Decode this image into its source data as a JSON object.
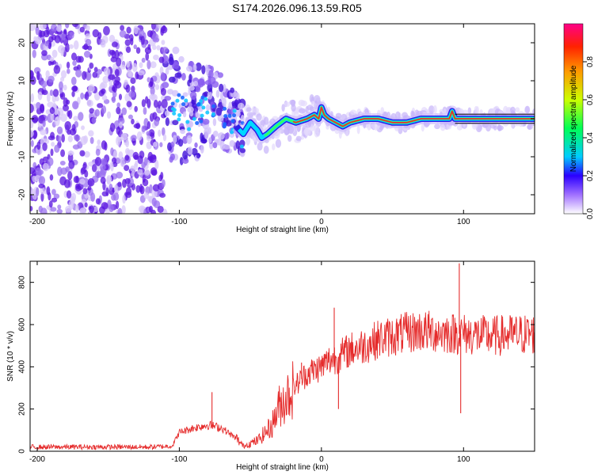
{
  "title": "S174.2026.096.13.59.R05",
  "colors": {
    "snr_line": "#e52b2b",
    "ridge": "#e53030",
    "frame": "#000000"
  },
  "chart_data": [
    {
      "id": "spectrogram",
      "type": "heatmap",
      "title": "S174.2026.096.13.59.R05",
      "xlabel": "Height of straight line (km)",
      "ylabel": "Frequency (Hz)",
      "xlim": [
        -205,
        150
      ],
      "ylim": [
        -25,
        25
      ],
      "xticks": [
        -200,
        -100,
        0,
        100
      ],
      "yticks": [
        -20,
        -10,
        0,
        10,
        20
      ],
      "colorbar": {
        "label": "Normalized spectral amplitude",
        "range": [
          0,
          1
        ],
        "ticks": [
          "0.0",
          "0.2",
          "0.4",
          "0.6",
          "0.8"
        ]
      },
      "ridge": {
        "x": [
          -105,
          -95,
          -85,
          -75,
          -65,
          -55,
          -50,
          -45,
          -42,
          -38,
          -32,
          -25,
          -18,
          -10,
          -5,
          -2,
          0,
          2,
          5,
          10,
          15,
          20,
          30,
          40,
          50,
          60,
          70,
          80,
          90,
          92,
          94,
          100,
          150
        ],
        "y": [
          4,
          1,
          2,
          3,
          0,
          -4,
          -1,
          -3,
          -5,
          -4,
          -2,
          0,
          -1,
          0,
          1,
          0,
          3,
          1,
          0,
          -1,
          -2,
          -1,
          0,
          0,
          -1,
          -1,
          0,
          0,
          0,
          2,
          0,
          0,
          0
        ]
      }
    },
    {
      "id": "snr",
      "type": "line",
      "xlabel": "Height of straight line (km)",
      "ylabel": "SNR (10 * v/v)",
      "xlim": [
        -205,
        150
      ],
      "ylim": [
        0,
        900
      ],
      "xticks": [
        -200,
        -100,
        0,
        100
      ],
      "yticks": [
        0,
        200,
        400,
        600,
        800
      ],
      "envelope": {
        "x": [
          -205,
          -180,
          -150,
          -120,
          -105,
          -100,
          -90,
          -80,
          -70,
          -60,
          -55,
          -45,
          -35,
          -30,
          -20,
          -10,
          0,
          5,
          10,
          15,
          20,
          30,
          40,
          50,
          60,
          70,
          80,
          90,
          100,
          110,
          120,
          130,
          150
        ],
        "y": [
          20,
          20,
          20,
          20,
          25,
          90,
          110,
          125,
          110,
          60,
          25,
          50,
          120,
          210,
          300,
          370,
          400,
          430,
          440,
          460,
          480,
          500,
          530,
          545,
          560,
          570,
          565,
          560,
          555,
          550,
          545,
          550,
          555
        ]
      },
      "spikes": [
        {
          "x": -77,
          "y": 280
        },
        {
          "x": -14,
          "y": 420
        },
        {
          "x": 9,
          "y": 680
        },
        {
          "x": 12,
          "y": 200
        },
        {
          "x": 97,
          "y": 890
        },
        {
          "x": 98,
          "y": 180
        },
        {
          "x": 60,
          "y": 650
        }
      ]
    }
  ]
}
